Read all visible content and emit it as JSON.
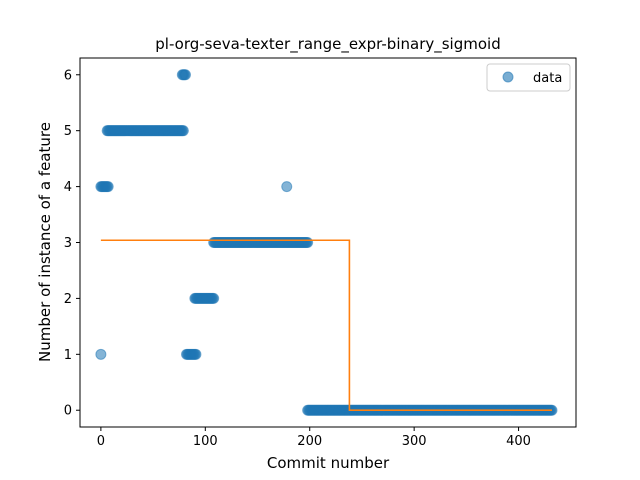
{
  "chart_data": {
    "type": "scatter",
    "title": "pl-org-seva-texter_range_expr-binary_sigmoid",
    "xlabel": "Commit number",
    "ylabel": "Number of instance of a feature",
    "xlim": [
      -20,
      455
    ],
    "ylim": [
      -0.3,
      6.3
    ],
    "xticks": [
      0,
      100,
      200,
      300,
      400
    ],
    "yticks": [
      0,
      1,
      2,
      3,
      4,
      5,
      6
    ],
    "legend": {
      "placement": "top-right",
      "entries": [
        "data"
      ]
    },
    "grid": false,
    "colors": {
      "points": "#1f77b4",
      "fit": "#ff7f0e"
    },
    "series": [
      {
        "name": "data",
        "kind": "scatter",
        "segments": [
          {
            "x_start": 0,
            "x_end": 0,
            "y": 1
          },
          {
            "x_start": 0,
            "x_end": 7,
            "y": 4
          },
          {
            "x_start": 6,
            "x_end": 79,
            "y": 5
          },
          {
            "x_start": 78,
            "x_end": 81,
            "y": 6
          },
          {
            "x_start": 82,
            "x_end": 91,
            "y": 1
          },
          {
            "x_start": 90,
            "x_end": 108,
            "y": 2
          },
          {
            "x_start": 108,
            "x_end": 198,
            "y": 3
          },
          {
            "x_start": 178,
            "x_end": 178,
            "y": 4
          },
          {
            "x_start": 198,
            "x_end": 432,
            "y": 0
          }
        ]
      },
      {
        "name": "",
        "kind": "step",
        "points": [
          [
            0,
            3.04
          ],
          [
            238,
            3.04
          ],
          [
            238,
            0.0
          ],
          [
            432,
            0.0
          ]
        ]
      }
    ]
  }
}
